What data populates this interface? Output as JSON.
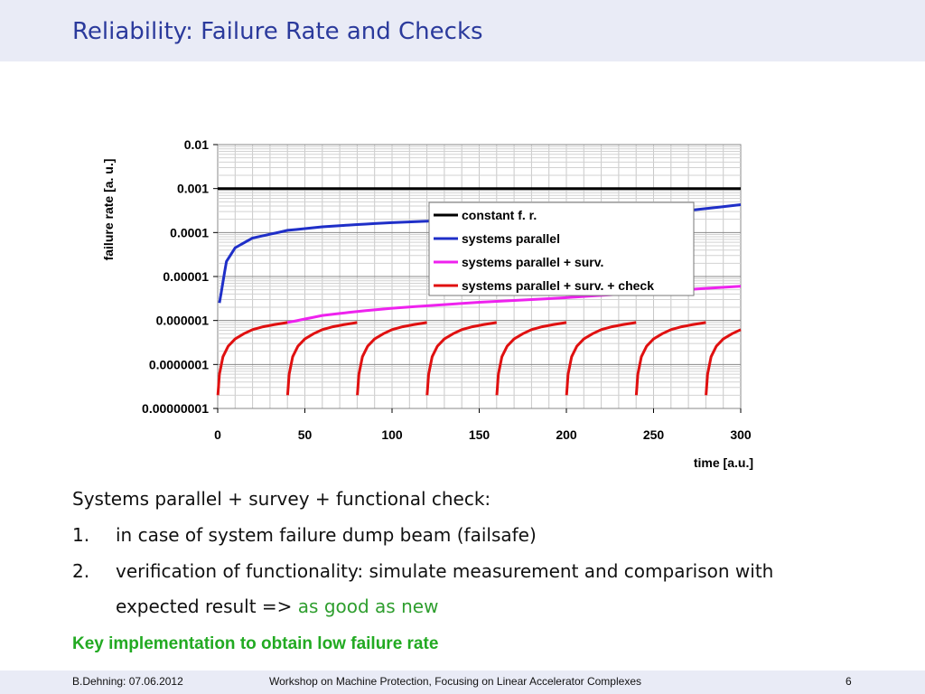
{
  "slide": {
    "title": "Reliability: Failure Rate and Checks",
    "intro": "Systems parallel + survey + functional check:",
    "items": [
      {
        "num": "1.",
        "text": "in case of system failure dump beam (failsafe)"
      },
      {
        "num": "2.",
        "text": "verification of functionality: simulate measurement and comparison with",
        "text2": "expected result => ",
        "highlight": "as good as new"
      }
    ],
    "key": "Key implementation to obtain low failure rate",
    "footer_left": "B.Dehning: 07.06.2012",
    "footer_center": "Workshop on Machine Protection, Focusing on Linear Accelerator Complexes",
    "page_number": "6",
    "colors": {
      "title": "#2b3a9c",
      "highlight": "#2e9e2e",
      "key": "#22aa22"
    }
  },
  "chart_data": {
    "type": "line",
    "xlabel": "time [a.u.]",
    "ylabel": "failure rate [a. u.]",
    "xlim": [
      0,
      300
    ],
    "ylim": [
      1e-08,
      0.01
    ],
    "yscale": "log",
    "x_ticks": [
      "0",
      "50",
      "100",
      "150",
      "200",
      "250",
      "300"
    ],
    "y_ticks": [
      "0.01",
      "0.001",
      "0.0001",
      "0.00001",
      "0.000001",
      "0.0000001",
      "0.00000001"
    ],
    "grid": true,
    "legend_position": "upper-right-inside",
    "series": [
      {
        "name": "constant f. r.",
        "color": "#000000",
        "x": [
          0,
          300
        ],
        "y": [
          0.001,
          0.001
        ]
      },
      {
        "name": "systems parallel",
        "color": "#1f2fc8",
        "x": [
          1,
          5,
          10,
          20,
          40,
          60,
          80,
          100,
          150,
          200,
          250,
          300
        ],
        "y": [
          2.5e-06,
          2.2e-05,
          4.5e-05,
          7.5e-05,
          0.000112,
          0.000135,
          0.000152,
          0.000168,
          0.000203,
          0.000232,
          0.000258,
          0.00043
        ]
      },
      {
        "name": "systems parallel + surv.",
        "color": "#ee22ee",
        "x": [
          40,
          60,
          80,
          100,
          150,
          200,
          250,
          300
        ],
        "y": [
          9e-07,
          1.3e-06,
          1.6e-06,
          1.9e-06,
          2.6e-06,
          3.3e-06,
          4.5e-06,
          6e-06
        ]
      },
      {
        "name": "systems parallel + surv. + check",
        "color": "#e01010",
        "period": 40,
        "segment_x": [
          0.1,
          1,
          3,
          6,
          10,
          15,
          20,
          26,
          32,
          40
        ],
        "segment_y": [
          2e-08,
          6e-08,
          1.5e-07,
          2.6e-07,
          3.8e-07,
          5e-07,
          6.2e-07,
          7.2e-07,
          8e-07,
          9e-07
        ]
      }
    ]
  }
}
